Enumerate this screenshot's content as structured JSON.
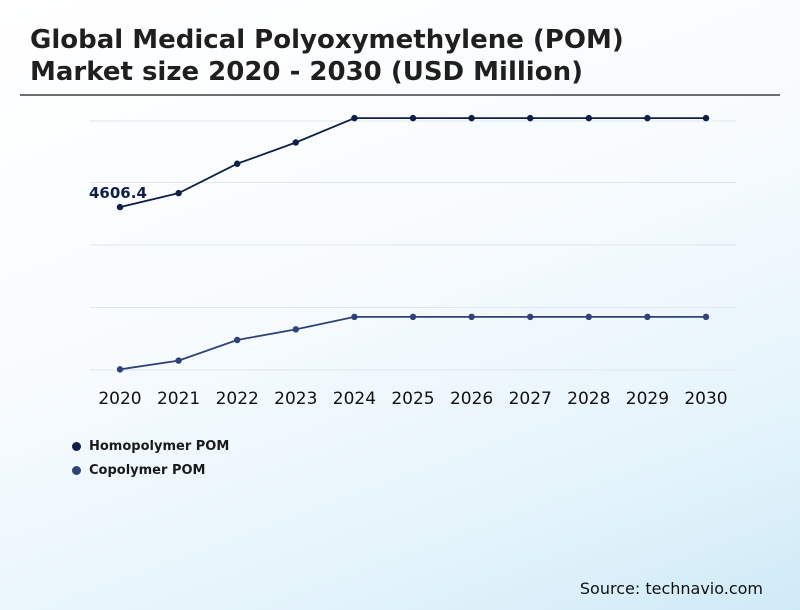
{
  "title": {
    "line1": "Global Medical Polyoxymethylene (POM)",
    "line2": "Market size 2020 - 2030 (USD Million)"
  },
  "source": "Source: technavio.com",
  "colors": {
    "homopolymer": "#0f1f45",
    "copolymer": "#2f4377",
    "grid": "#dfe6ec"
  },
  "chart_data": {
    "type": "line",
    "title": "Global Medical Polyoxymethylene (POM) Market size 2020 - 2030 (USD Million)",
    "xlabel": "",
    "ylabel": "",
    "categories": [
      "2020",
      "2021",
      "2022",
      "2023",
      "2024",
      "2025",
      "2026",
      "2027",
      "2028",
      "2029",
      "2030"
    ],
    "ylim": [
      2000,
      6000
    ],
    "y_axis_visible": false,
    "grid": true,
    "legend_position": "bottom-left",
    "series": [
      {
        "name": "Homopolymer POM",
        "color": "#0f1f45",
        "values": [
          4606.4,
          4830,
          5300,
          5640,
          6030,
          6030,
          6030,
          6030,
          6030,
          6030,
          6030
        ]
      },
      {
        "name": "Copolymer POM",
        "color": "#2f4377",
        "values": [
          2010,
          2150,
          2480,
          2650,
          2850,
          2850,
          2850,
          2850,
          2850,
          2850,
          2850
        ]
      }
    ],
    "annotations": [
      {
        "series": 0,
        "index": 0,
        "text": "4606.4"
      }
    ]
  }
}
